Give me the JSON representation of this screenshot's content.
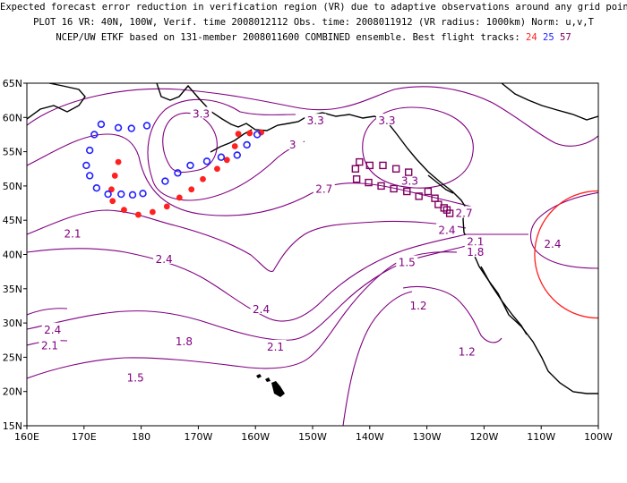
{
  "header": {
    "line1": "Expected forecast error reduction in verification region (VR) due to adaptive observations around any grid point.",
    "line2": "PLOT 16 VR: 40N, 100W, Verif. time 2008012112 Obs. time: 2008011912 (VR radius: 1000km) Norm: u,v,T",
    "line3_prefix": "NCEP/UW ETKF based on 131-member 2008011600 COMBINED ensemble.  Best flight tracks:",
    "track_a": "24",
    "track_b": "25",
    "track_c": "57"
  },
  "map": {
    "lon_range": [
      160,
      260
    ],
    "lat_range": [
      15,
      65
    ],
    "lon_labels": [
      "160E",
      "170E",
      "180",
      "170W",
      "160W",
      "150W",
      "140W",
      "130W",
      "120W",
      "110W",
      "100W"
    ],
    "lat_labels": [
      "15N",
      "20N",
      "25N",
      "30N",
      "35N",
      "40N",
      "45N",
      "50N",
      "55N",
      "60N",
      "65N"
    ],
    "verification_region": {
      "lat": 40,
      "lon": -100,
      "radius_km": 1000,
      "color": "#ff2020"
    },
    "contour_labels": [
      {
        "text": "3.3",
        "lon": 190.5,
        "lat": 60.5
      },
      {
        "text": "3.3",
        "lon": 210.5,
        "lat": 59.5
      },
      {
        "text": "3",
        "lon": 206.5,
        "lat": 56.0
      },
      {
        "text": "3.3",
        "lon": 223.0,
        "lat": 59.5
      },
      {
        "text": "3.3",
        "lon": 227.0,
        "lat": 50.7
      },
      {
        "text": "2.7",
        "lon": 212.0,
        "lat": 49.5
      },
      {
        "text": "2.7",
        "lon": 236.5,
        "lat": 46.0
      },
      {
        "text": "2.4",
        "lon": 233.5,
        "lat": 43.5
      },
      {
        "text": "2.1",
        "lon": 238.5,
        "lat": 41.8
      },
      {
        "text": "1.8",
        "lon": 238.5,
        "lat": 40.3
      },
      {
        "text": "1.5",
        "lon": 226.5,
        "lat": 38.8
      },
      {
        "text": "1.2",
        "lon": 228.5,
        "lat": 32.5
      },
      {
        "text": "1.2",
        "lon": 237.0,
        "lat": 25.8
      },
      {
        "text": "2.4",
        "lon": 252.0,
        "lat": 41.5
      },
      {
        "text": "2.1",
        "lon": 168.0,
        "lat": 43.0
      },
      {
        "text": "2.4",
        "lon": 184.0,
        "lat": 39.3
      },
      {
        "text": "2.4",
        "lon": 201.0,
        "lat": 32.0
      },
      {
        "text": "2.1",
        "lon": 203.5,
        "lat": 26.5
      },
      {
        "text": "1.8",
        "lon": 187.5,
        "lat": 27.3
      },
      {
        "text": "1.5",
        "lon": 179.0,
        "lat": 22.0
      },
      {
        "text": "2.4",
        "lon": 164.5,
        "lat": 29.0
      },
      {
        "text": "2.1",
        "lon": 164.0,
        "lat": 26.7
      }
    ],
    "tracks": {
      "track_24": {
        "color": "#ff2020",
        "marker": "dot",
        "points": [
          [
            176.0,
            53.5
          ],
          [
            175.4,
            51.5
          ],
          [
            174.8,
            49.5
          ],
          [
            175.0,
            47.8
          ],
          [
            177.0,
            46.5
          ],
          [
            179.5,
            45.8
          ],
          [
            182.0,
            46.2
          ],
          [
            184.5,
            47.0
          ],
          [
            186.7,
            48.3
          ],
          [
            188.8,
            49.5
          ],
          [
            190.8,
            51.0
          ],
          [
            193.3,
            52.5
          ],
          [
            195.0,
            53.8
          ],
          [
            196.4,
            55.8
          ],
          [
            197.0,
            57.6
          ],
          [
            199.0,
            57.7
          ],
          [
            201.0,
            57.8
          ]
        ]
      },
      "track_25": {
        "color": "#2020ff",
        "marker": "ring",
        "points": [
          [
            181.0,
            58.8
          ],
          [
            178.3,
            58.4
          ],
          [
            176.0,
            58.5
          ],
          [
            173.0,
            59.0
          ],
          [
            171.8,
            57.5
          ],
          [
            171.0,
            55.2
          ],
          [
            170.4,
            53.0
          ],
          [
            171.0,
            51.5
          ],
          [
            172.2,
            49.7
          ],
          [
            174.2,
            48.8
          ],
          [
            176.5,
            48.8
          ],
          [
            178.5,
            48.7
          ],
          [
            180.3,
            48.9
          ],
          [
            184.2,
            50.7
          ],
          [
            186.4,
            51.9
          ],
          [
            188.6,
            53.0
          ],
          [
            191.5,
            53.6
          ],
          [
            194.0,
            54.2
          ],
          [
            196.8,
            54.5
          ],
          [
            198.5,
            56.0
          ],
          [
            200.3,
            57.5
          ]
        ]
      },
      "track_57": {
        "color": "#800060",
        "marker": "square",
        "points": [
          [
            217.5,
            52.5
          ],
          [
            218.2,
            53.5
          ],
          [
            220.0,
            53.0
          ],
          [
            222.3,
            53.0
          ],
          [
            224.6,
            52.5
          ],
          [
            226.8,
            52.0
          ],
          [
            217.7,
            51.0
          ],
          [
            219.8,
            50.5
          ],
          [
            222.0,
            50.0
          ],
          [
            224.2,
            49.6
          ],
          [
            226.5,
            49.2
          ],
          [
            228.6,
            48.5
          ],
          [
            230.2,
            49.2
          ],
          [
            231.4,
            48.2
          ],
          [
            232.0,
            47.3
          ],
          [
            233.0,
            46.8
          ],
          [
            233.5,
            46.5
          ],
          [
            234.0,
            46.0
          ]
        ]
      }
    }
  }
}
